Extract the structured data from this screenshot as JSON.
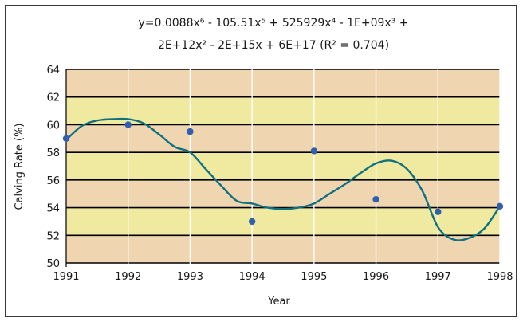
{
  "chart_data": {
    "type": "scatter",
    "title_line1": "y=0.0088x⁶ - 105.51x⁵ + 525929x⁴ - 1E+09x³ +",
    "title_line2": "2E+12x² - 2E+15x + 6E+17 (R² = 0.704)",
    "xlabel": "Year",
    "ylabel": "Calving Rate (%)",
    "xlim": [
      1991,
      1998
    ],
    "ylim": [
      50,
      64
    ],
    "x_ticks": [
      1991,
      1992,
      1993,
      1994,
      1995,
      1996,
      1997,
      1998
    ],
    "y_ticks": [
      50,
      52,
      54,
      56,
      58,
      60,
      62,
      64
    ],
    "grid": true,
    "series": [
      {
        "x": [
          1991,
          1992,
          1993,
          1994,
          1995,
          1996,
          1997,
          1998
        ],
        "values": [
          59.0,
          60.0,
          59.5,
          53.0,
          58.1,
          54.6,
          53.7,
          54.1
        ]
      }
    ],
    "trendline": {
      "type": "polynomial",
      "order": 6,
      "r_squared": 0.704,
      "x": [
        1991,
        1991.25,
        1991.5,
        1991.75,
        1992,
        1992.25,
        1992.5,
        1992.75,
        1993,
        1993.25,
        1993.5,
        1993.75,
        1994,
        1994.25,
        1994.5,
        1994.75,
        1995,
        1995.25,
        1995.5,
        1995.75,
        1996,
        1996.25,
        1996.5,
        1996.75,
        1997,
        1997.25,
        1997.5,
        1997.75,
        1998
      ],
      "y": [
        58.9,
        59.9,
        60.3,
        60.4,
        60.4,
        60.1,
        59.3,
        58.4,
        58.0,
        56.8,
        55.6,
        54.5,
        54.3,
        54.0,
        53.9,
        54.0,
        54.3,
        55.0,
        55.7,
        56.5,
        57.2,
        57.4,
        56.8,
        55.2,
        52.6,
        51.7,
        51.8,
        52.5,
        54.1
      ]
    },
    "colors": {
      "band_tan": "#f0d6b0",
      "band_yellow": "#efeaa0",
      "grid": "#000000",
      "point": "#2f5fae",
      "trendline": "#11707f"
    }
  }
}
